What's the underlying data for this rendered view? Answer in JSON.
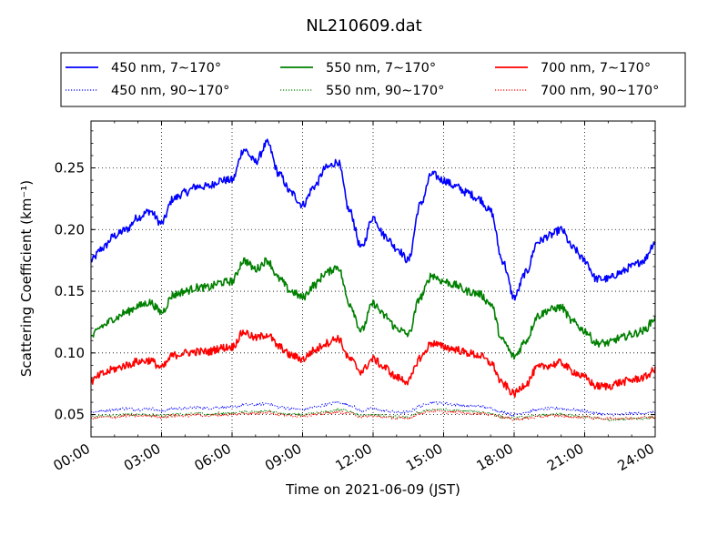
{
  "chart_data": {
    "type": "line",
    "title": "NL210609.dat",
    "xlabel": "Time on 2021-06-09 (JST)",
    "ylabel": "Scattering Coefficient (km⁻¹)",
    "xlim": [
      "00:00",
      "24:00"
    ],
    "ylim": [
      0.032,
      0.288
    ],
    "x_ticks": [
      "00:00",
      "03:00",
      "06:00",
      "09:00",
      "12:00",
      "15:00",
      "18:00",
      "21:00",
      "24:00"
    ],
    "y_ticks": [
      "0.05",
      "0.10",
      "0.15",
      "0.20",
      "0.25"
    ],
    "grid": true,
    "legend_position": "top",
    "x_hours": [
      0,
      0.5,
      1,
      1.5,
      2,
      2.5,
      3,
      3.5,
      4,
      4.5,
      5,
      5.5,
      6,
      6.5,
      7,
      7.5,
      8,
      8.5,
      9,
      9.5,
      10,
      10.5,
      11,
      11.5,
      12,
      12.5,
      13,
      13.5,
      14,
      14.5,
      15,
      15.5,
      16,
      16.5,
      17,
      17.5,
      18,
      18.5,
      19,
      19.5,
      20,
      20.5,
      21,
      21.5,
      22,
      22.5,
      23,
      23.5,
      24
    ],
    "series": [
      {
        "name": "450 nm, 7∼170°",
        "color": "#0000ff",
        "style": "solid",
        "values": [
          0.175,
          0.185,
          0.195,
          0.2,
          0.21,
          0.215,
          0.205,
          0.225,
          0.23,
          0.235,
          0.235,
          0.24,
          0.24,
          0.265,
          0.255,
          0.27,
          0.245,
          0.23,
          0.22,
          0.235,
          0.25,
          0.255,
          0.215,
          0.185,
          0.21,
          0.195,
          0.185,
          0.175,
          0.22,
          0.245,
          0.24,
          0.235,
          0.23,
          0.225,
          0.215,
          0.175,
          0.145,
          0.165,
          0.19,
          0.195,
          0.2,
          0.185,
          0.175,
          0.16,
          0.16,
          0.165,
          0.17,
          0.175,
          0.19
        ]
      },
      {
        "name": "450 nm, 90∼170°",
        "color": "#0000ff",
        "style": "dotted",
        "values": [
          0.052,
          0.053,
          0.054,
          0.055,
          0.054,
          0.055,
          0.053,
          0.055,
          0.055,
          0.056,
          0.055,
          0.056,
          0.056,
          0.058,
          0.058,
          0.059,
          0.056,
          0.055,
          0.054,
          0.056,
          0.058,
          0.06,
          0.058,
          0.053,
          0.055,
          0.053,
          0.052,
          0.052,
          0.057,
          0.06,
          0.059,
          0.058,
          0.057,
          0.057,
          0.055,
          0.052,
          0.05,
          0.052,
          0.054,
          0.055,
          0.055,
          0.054,
          0.053,
          0.051,
          0.05,
          0.05,
          0.051,
          0.051,
          0.052
        ]
      },
      {
        "name": "550 nm, 7∼170°",
        "color": "#008000",
        "style": "solid",
        "values": [
          0.113,
          0.122,
          0.128,
          0.133,
          0.138,
          0.141,
          0.133,
          0.147,
          0.15,
          0.153,
          0.153,
          0.157,
          0.158,
          0.175,
          0.168,
          0.175,
          0.16,
          0.15,
          0.145,
          0.155,
          0.165,
          0.17,
          0.14,
          0.118,
          0.14,
          0.13,
          0.12,
          0.115,
          0.145,
          0.163,
          0.158,
          0.155,
          0.15,
          0.148,
          0.14,
          0.11,
          0.097,
          0.11,
          0.13,
          0.135,
          0.137,
          0.125,
          0.118,
          0.108,
          0.108,
          0.112,
          0.115,
          0.118,
          0.128
        ]
      },
      {
        "name": "550 nm, 90∼170°",
        "color": "#008000",
        "style": "dotted",
        "values": [
          0.048,
          0.049,
          0.049,
          0.05,
          0.05,
          0.05,
          0.049,
          0.05,
          0.05,
          0.051,
          0.05,
          0.051,
          0.051,
          0.052,
          0.052,
          0.053,
          0.051,
          0.05,
          0.05,
          0.051,
          0.052,
          0.054,
          0.053,
          0.049,
          0.05,
          0.049,
          0.048,
          0.048,
          0.052,
          0.054,
          0.054,
          0.053,
          0.053,
          0.052,
          0.051,
          0.048,
          0.047,
          0.048,
          0.049,
          0.05,
          0.05,
          0.049,
          0.048,
          0.047,
          0.046,
          0.046,
          0.047,
          0.047,
          0.048
        ]
      },
      {
        "name": "700 nm, 7∼170°",
        "color": "#ff0000",
        "style": "solid",
        "values": [
          0.077,
          0.083,
          0.087,
          0.09,
          0.093,
          0.094,
          0.088,
          0.098,
          0.1,
          0.101,
          0.101,
          0.104,
          0.105,
          0.117,
          0.112,
          0.115,
          0.105,
          0.098,
          0.095,
          0.102,
          0.108,
          0.112,
          0.095,
          0.085,
          0.095,
          0.088,
          0.08,
          0.077,
          0.096,
          0.108,
          0.105,
          0.103,
          0.1,
          0.098,
          0.092,
          0.075,
          0.067,
          0.075,
          0.088,
          0.09,
          0.092,
          0.085,
          0.08,
          0.073,
          0.073,
          0.076,
          0.078,
          0.08,
          0.086
        ]
      },
      {
        "name": "700 nm, 90∼170°",
        "color": "#ff0000",
        "style": "dotted",
        "values": [
          0.047,
          0.048,
          0.048,
          0.049,
          0.049,
          0.049,
          0.048,
          0.049,
          0.049,
          0.05,
          0.049,
          0.05,
          0.05,
          0.051,
          0.051,
          0.052,
          0.05,
          0.049,
          0.049,
          0.05,
          0.051,
          0.052,
          0.051,
          0.048,
          0.049,
          0.048,
          0.047,
          0.047,
          0.051,
          0.053,
          0.052,
          0.052,
          0.051,
          0.051,
          0.05,
          0.048,
          0.046,
          0.047,
          0.048,
          0.049,
          0.049,
          0.048,
          0.048,
          0.047,
          0.047,
          0.047,
          0.047,
          0.048,
          0.048
        ]
      }
    ]
  }
}
